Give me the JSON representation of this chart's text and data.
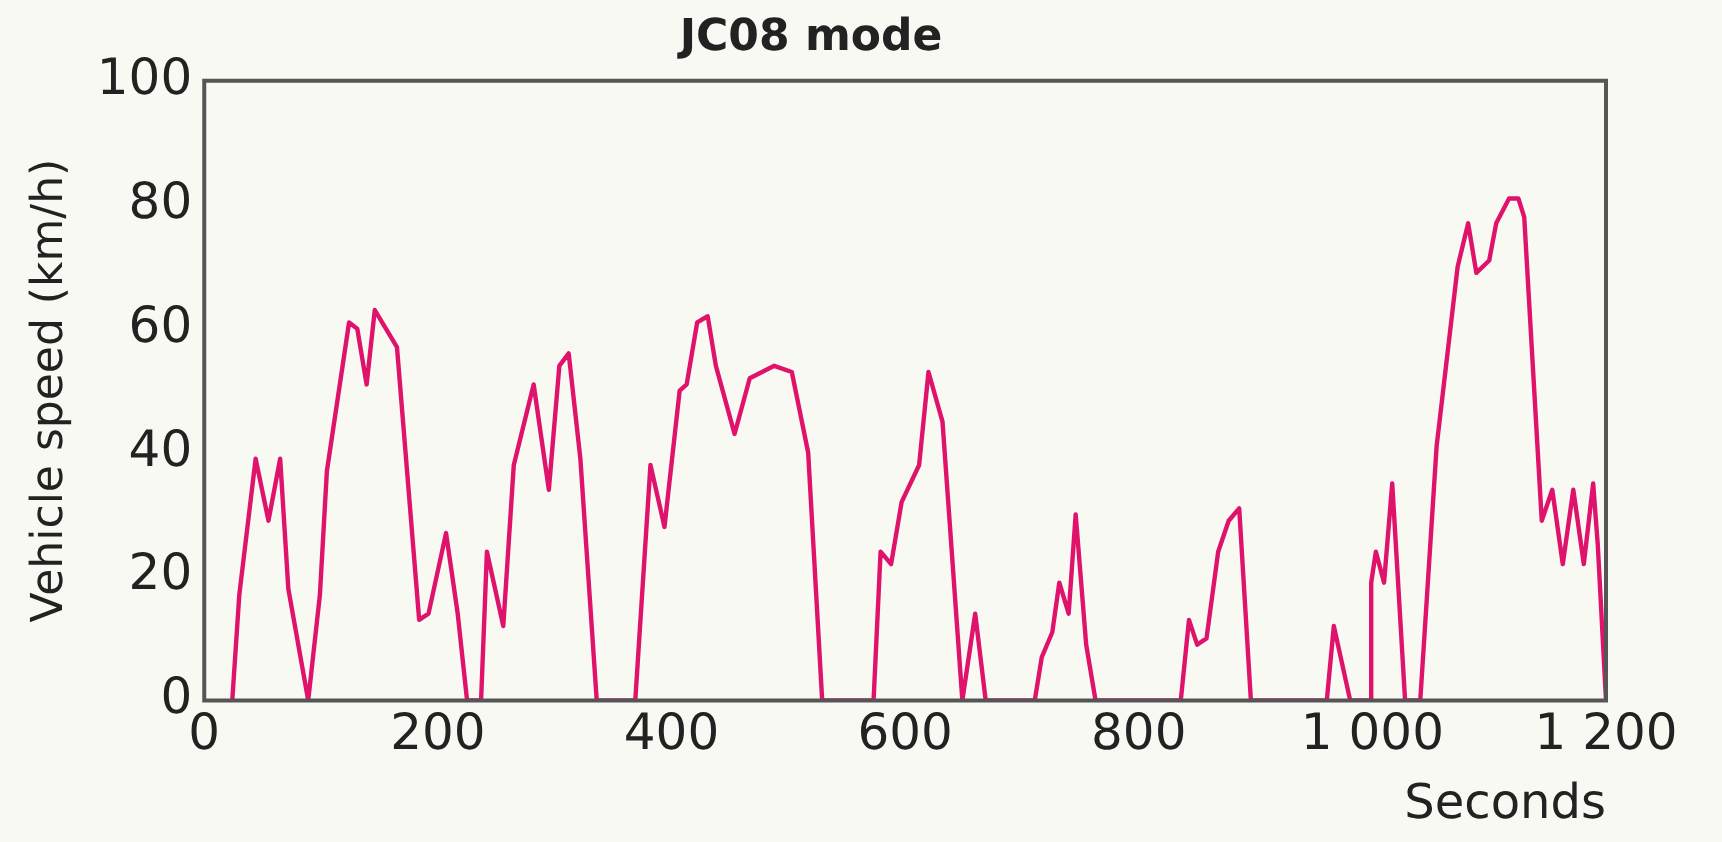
{
  "chart_data": {
    "type": "line",
    "title": "JC08 mode",
    "xlabel": "Seconds",
    "ylabel": "Vehicle speed (km/h)",
    "xlim": [
      0,
      1200
    ],
    "ylim": [
      0,
      100
    ],
    "xticks": [
      0,
      200,
      400,
      600,
      800,
      {
        "value": 1000,
        "label": "1 000"
      },
      {
        "value": 1200,
        "label": "1 200"
      }
    ],
    "yticks": [
      0,
      20,
      40,
      60,
      80,
      100
    ],
    "grid": false,
    "legend": false,
    "marker": "none",
    "line_style": "solid",
    "series": [
      {
        "color": "#e0136c",
        "x": [
          24,
          30,
          44,
          55,
          65,
          72,
          89,
          99,
          105,
          124,
          131,
          139,
          146,
          165,
          184,
          192,
          207,
          217,
          225,
          237,
          242,
          256,
          265,
          282,
          295,
          304,
          312,
          322,
          336,
          369,
          382,
          394,
          407,
          413,
          422,
          431,
          438,
          454,
          467,
          488,
          503,
          517,
          529,
          573,
          579,
          588,
          597,
          612,
          620,
          632,
          649,
          660,
          669,
          711,
          717,
          726,
          732,
          740,
          746,
          755,
          763,
          836,
          843,
          850,
          858,
          868,
          877,
          886,
          896,
          961,
          967,
          981,
          998,
          999,
          1003,
          1010,
          1017,
          1028,
          1041,
          1055,
          1073,
          1082,
          1089,
          1100,
          1106,
          1117,
          1125,
          1130,
          1145,
          1154,
          1163,
          1172,
          1181,
          1189,
          1193,
          1200
        ],
        "values": [
          0,
          17,
          39,
          29,
          39,
          18,
          0,
          17,
          37,
          61,
          60,
          51,
          63,
          57,
          13,
          14,
          27,
          14,
          0,
          0,
          24,
          12,
          38,
          51,
          34,
          54,
          56,
          39,
          0,
          0,
          38,
          28,
          50,
          51,
          61,
          62,
          54,
          43,
          52,
          54,
          53,
          40,
          0,
          0,
          24,
          22,
          32,
          38,
          53,
          45,
          0,
          14,
          0,
          0,
          7,
          11,
          19,
          14,
          30,
          9,
          0,
          0,
          13,
          9,
          10,
          24,
          29,
          31,
          0,
          0,
          12,
          0,
          0,
          19,
          24,
          19,
          35,
          0,
          0,
          41,
          70,
          77,
          69,
          71,
          77,
          81,
          81,
          78,
          29,
          34,
          22,
          34,
          22,
          35,
          25,
          0
        ]
      }
    ]
  }
}
